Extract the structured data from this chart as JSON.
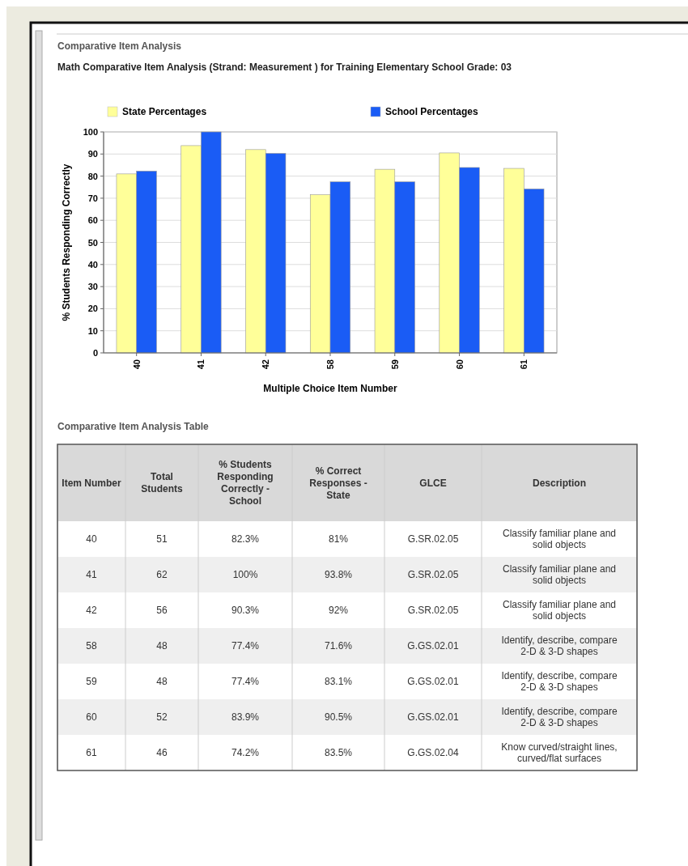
{
  "chart_data": {
    "type": "bar",
    "title": "Math Comparative Item Analysis (Strand: Measurement ) for Training Elementary School Grade: 03",
    "xlabel": "Multiple Choice Item Number",
    "ylabel": "% Students Responding Correctly",
    "categories": [
      "40",
      "41",
      "42",
      "58",
      "59",
      "60",
      "61"
    ],
    "series": [
      {
        "name": "State Percentages",
        "color": "#ffff99",
        "values": [
          81,
          93.8,
          92,
          71.6,
          83.1,
          90.5,
          83.5
        ]
      },
      {
        "name": "School Percentages",
        "color": "#1a5cf5",
        "values": [
          82.3,
          100,
          90.3,
          77.4,
          77.4,
          83.9,
          74.2
        ]
      }
    ],
    "ylim": [
      0,
      100
    ],
    "yticks": [
      0,
      10,
      20,
      30,
      40,
      50,
      60,
      70,
      80,
      90,
      100
    ],
    "grid": "y",
    "legend": "top",
    "annotations": [
      "Comparative Item Analysis",
      "Comparative Item Analysis Table",
      "Item Number",
      "Total Students",
      "% Students Responding Correctly - School",
      "% Correct Responses - State",
      "GLCE",
      "Description",
      "51",
      "82.3%",
      "81%",
      "G.SR.02.05",
      "Classify familiar plane and solid objects",
      "62",
      "100%",
      "93.8%",
      "G.SR.02.05",
      "Classify familiar plane and solid objects",
      "56",
      "90.3%",
      "92%",
      "G.SR.02.05",
      "Classify familiar plane and solid objects",
      "48",
      "77.4%",
      "71.6%",
      "G.GS.02.01",
      "Identify, describe, compare 2-D & 3-D shapes",
      "48",
      "77.4%",
      "83.1%",
      "G.GS.02.01",
      "Identify, describe, compare 2-D & 3-D shapes",
      "52",
      "83.9%",
      "90.5%",
      "G.GS.02.01",
      "Identify, describe, compare 2-D & 3-D shapes",
      "46",
      "74.2%",
      "83.5%",
      "G.GS.02.04",
      "Know curved/straight lines, curved/flat surfaces"
    ]
  }
}
